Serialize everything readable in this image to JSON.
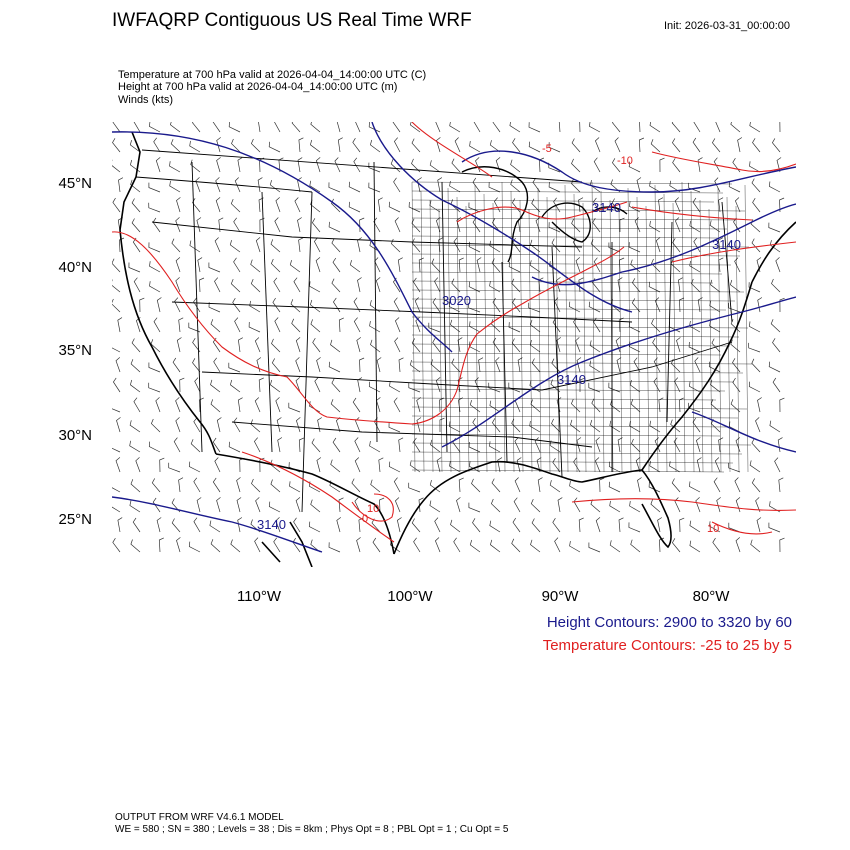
{
  "title": "IWFAQRP Contiguous US Real Time WRF",
  "init": "Init: 2026-03-31_00:00:00",
  "fields": [
    "Temperature at 700 hPa valid at 2026-04-04_14:00:00 UTC   (C)",
    "Height at 700 hPa valid at 2026-04-04_14:00:00 UTC   (m)",
    "Winds   (kts)"
  ],
  "lat_labels": [
    "45°N",
    "40°N",
    "35°N",
    "30°N",
    "25°N"
  ],
  "lon_labels": [
    "110°W",
    "100°W",
    "90°W",
    "80°W"
  ],
  "height_contour_labels": [
    "3020",
    "3140",
    "3140",
    "3140",
    "3140"
  ],
  "temp_contour_labels": [
    "-10",
    "-5",
    "0",
    "10",
    "10"
  ],
  "legend": {
    "height": "Height Contours: 2900 to 3320 by 60",
    "temperature": "Temperature Contours: -25 to 25 by 5"
  },
  "colors": {
    "height": "#1a1a8c",
    "temperature": "#e02020",
    "boundaries": "#000000"
  },
  "footer": [
    "OUTPUT FROM WRF V4.6.1 MODEL",
    "WE = 580 ; SN = 380 ; Levels = 38 ; Dis = 8km ; Phys Opt = 8 ; PBL Opt = 1 ; Cu Opt = 5"
  ]
}
